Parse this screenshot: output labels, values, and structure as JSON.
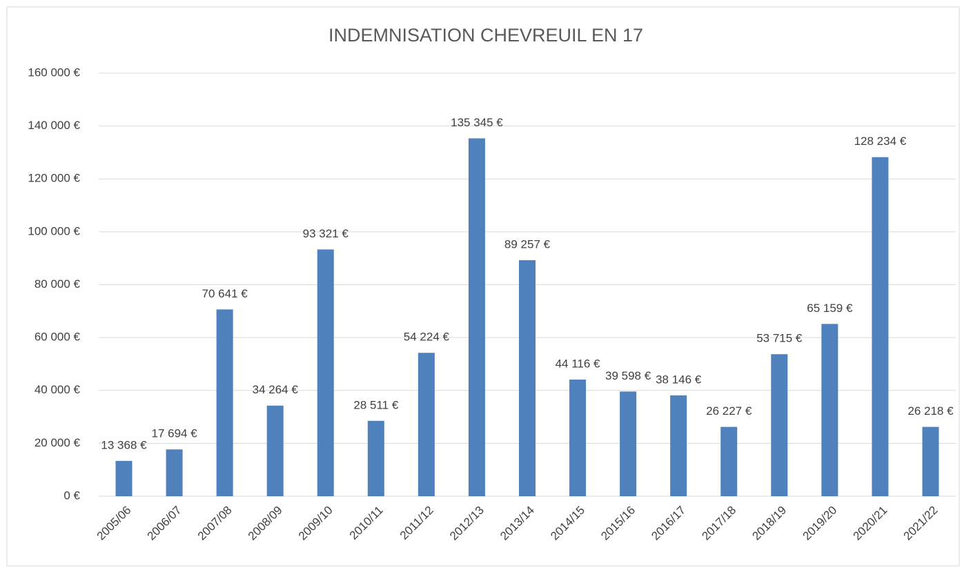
{
  "chart_data": {
    "type": "bar",
    "title": "INDEMNISATION CHEVREUIL EN 17",
    "categories": [
      "2005/06",
      "2006/07",
      "2007/08",
      "2008/09",
      "2009/10",
      "2010/11",
      "2011/12",
      "2012/13",
      "2013/14",
      "2014/15",
      "2015/16",
      "2016/17",
      "2017/18",
      "2018/19",
      "2019/20",
      "2020/21",
      "2021/22"
    ],
    "values": [
      13368,
      17694,
      70641,
      34264,
      93321,
      28511,
      54224,
      135345,
      89257,
      44116,
      39598,
      38146,
      26227,
      53715,
      65159,
      128234,
      26218
    ],
    "value_labels": [
      "13 368 €",
      "17 694 €",
      "70 641 €",
      "34 264 €",
      "93 321 €",
      "28 511 €",
      "54 224 €",
      "135 345 €",
      "89 257 €",
      "44 116 €",
      "39 598 €",
      "38 146 €",
      "26 227 €",
      "53 715 €",
      "65 159 €",
      "128 234 €",
      "26 218 €"
    ],
    "color": "#4f81bd",
    "ylim": [
      0,
      160000
    ],
    "yticks": [
      {
        "value": 0,
        "label": "0 €"
      },
      {
        "value": 20000,
        "label": "20 000 €"
      },
      {
        "value": 40000,
        "label": "40 000 €"
      },
      {
        "value": 60000,
        "label": "60 000 €"
      },
      {
        "value": 80000,
        "label": "80 000 €"
      },
      {
        "value": 100000,
        "label": "100 000 €"
      },
      {
        "value": 120000,
        "label": "120 000 €"
      },
      {
        "value": 140000,
        "label": "140 000 €"
      },
      {
        "value": 160000,
        "label": "160 000 €"
      }
    ],
    "grid": true
  }
}
